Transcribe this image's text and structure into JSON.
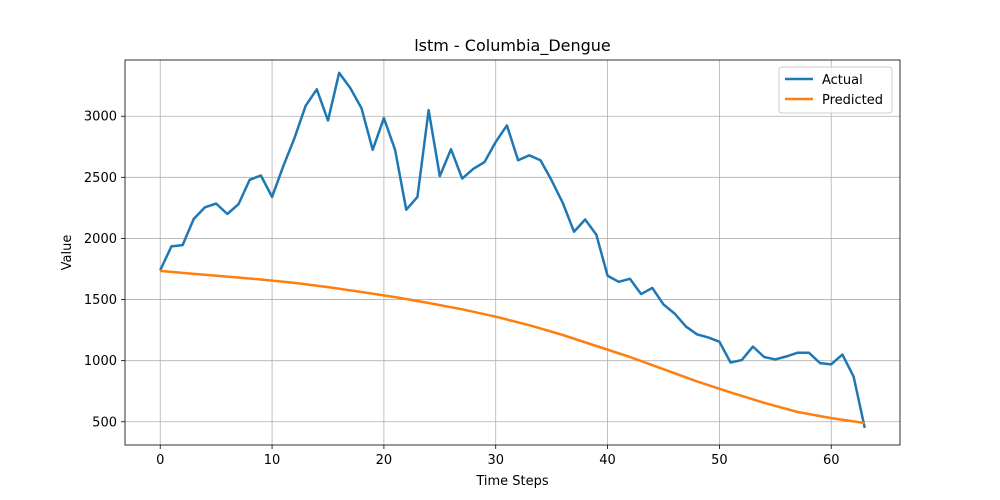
{
  "chart_data": {
    "type": "line",
    "title": "lstm - Columbia_Dengue",
    "xlabel": "Time Steps",
    "ylabel": "Value",
    "xlim": [
      -3.15,
      66.15
    ],
    "ylim": [
      310,
      3460
    ],
    "xticks": [
      0,
      10,
      20,
      30,
      40,
      50,
      60
    ],
    "yticks": [
      500,
      1000,
      1500,
      2000,
      2500,
      3000
    ],
    "grid": true,
    "legend_position": "top-right",
    "series": [
      {
        "name": "Actual",
        "color": "#1f77b4",
        "x": [
          0,
          1,
          2,
          3,
          4,
          5,
          6,
          7,
          8,
          9,
          10,
          11,
          12,
          13,
          14,
          15,
          16,
          17,
          18,
          19,
          20,
          21,
          22,
          23,
          24,
          25,
          26,
          27,
          28,
          29,
          30,
          31,
          32,
          33,
          34,
          35,
          36,
          37,
          38,
          39,
          40,
          41,
          42,
          43,
          44,
          45,
          46,
          47,
          48,
          49,
          50,
          51,
          52,
          53,
          54,
          55,
          56,
          57,
          58,
          59,
          60,
          61,
          62,
          63
        ],
        "y": [
          1740,
          1935,
          1945,
          2160,
          2255,
          2285,
          2200,
          2280,
          2480,
          2515,
          2340,
          2590,
          2820,
          3085,
          3220,
          2965,
          3355,
          3230,
          3065,
          2725,
          2985,
          2725,
          2235,
          2340,
          3050,
          2510,
          2730,
          2490,
          2570,
          2625,
          2790,
          2925,
          2640,
          2680,
          2640,
          2475,
          2290,
          2055,
          2155,
          2030,
          1695,
          1645,
          1670,
          1545,
          1595,
          1460,
          1385,
          1280,
          1215,
          1190,
          1155,
          985,
          1005,
          1115,
          1030,
          1010,
          1035,
          1065,
          1065,
          980,
          970,
          1050,
          870,
          450
        ]
      },
      {
        "name": "Predicted",
        "color": "#ff7f0e",
        "x": [
          0,
          3,
          6,
          9,
          12,
          15,
          18,
          21,
          24,
          27,
          30,
          33,
          36,
          39,
          42,
          45,
          48,
          51,
          54,
          57,
          60,
          63
        ],
        "y": [
          1735,
          1710,
          1688,
          1664,
          1636,
          1602,
          1562,
          1520,
          1472,
          1420,
          1360,
          1290,
          1210,
          1120,
          1030,
          930,
          830,
          740,
          655,
          580,
          530,
          490
        ]
      }
    ]
  }
}
